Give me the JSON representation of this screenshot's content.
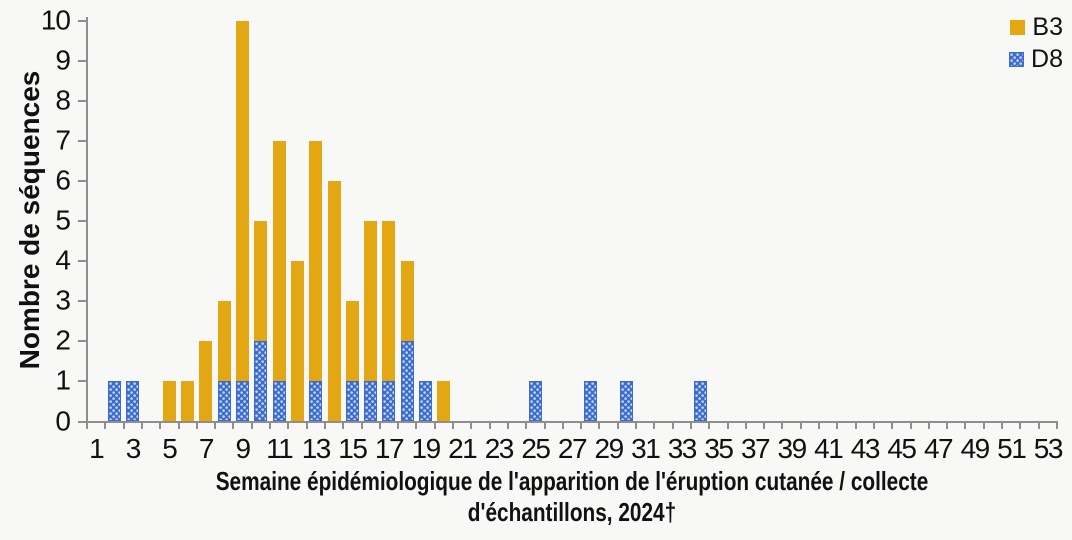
{
  "chart_data": {
    "type": "bar",
    "stacked": true,
    "title": "",
    "ylabel": "Nombre de séquences",
    "xlabel": "Semaine épidémiologique de l'apparition de l'éruption cutanée / collecte d'échantillons, 2024†",
    "xlabel_lines": [
      "Semaine épidémiologique de l'apparition de l'éruption cutanée / collecte",
      "d'échantillons, 2024†"
    ],
    "ylim": [
      0,
      10
    ],
    "y_ticks": [
      0,
      1,
      2,
      3,
      4,
      5,
      6,
      7,
      8,
      9,
      10
    ],
    "x_range": [
      1,
      53
    ],
    "x_tick_labels": [
      1,
      3,
      5,
      7,
      9,
      11,
      13,
      15,
      17,
      19,
      21,
      23,
      25,
      27,
      29,
      31,
      33,
      35,
      37,
      39,
      41,
      43,
      45,
      47,
      49,
      51,
      53
    ],
    "grid": "off",
    "legend_position": "top-right",
    "legend": [
      {
        "label": "B3"
      },
      {
        "label": "D8"
      }
    ],
    "series": [
      {
        "name": "B3",
        "color": "#E2A712",
        "pattern": "solid",
        "data": {
          "5": 1,
          "6": 1,
          "7": 2,
          "8": 2,
          "9": 9,
          "10": 3,
          "11": 6,
          "12": 4,
          "13": 6,
          "14": 6,
          "15": 2,
          "16": 4,
          "17": 4,
          "18": 2,
          "20": 1
        }
      },
      {
        "name": "D8",
        "color": "#3E6CCC",
        "dot_color": "#BDD2F2",
        "pattern": "dotted",
        "data": {
          "2": 1,
          "3": 1,
          "8": 1,
          "9": 1,
          "10": 2,
          "11": 1,
          "13": 1,
          "15": 1,
          "16": 1,
          "17": 1,
          "18": 2,
          "19": 1,
          "25": 1,
          "28": 1,
          "30": 1,
          "34": 1
        }
      }
    ],
    "stacked_totals_note": "D8 segments are drawn at the bottom of each stack, B3 on top"
  }
}
